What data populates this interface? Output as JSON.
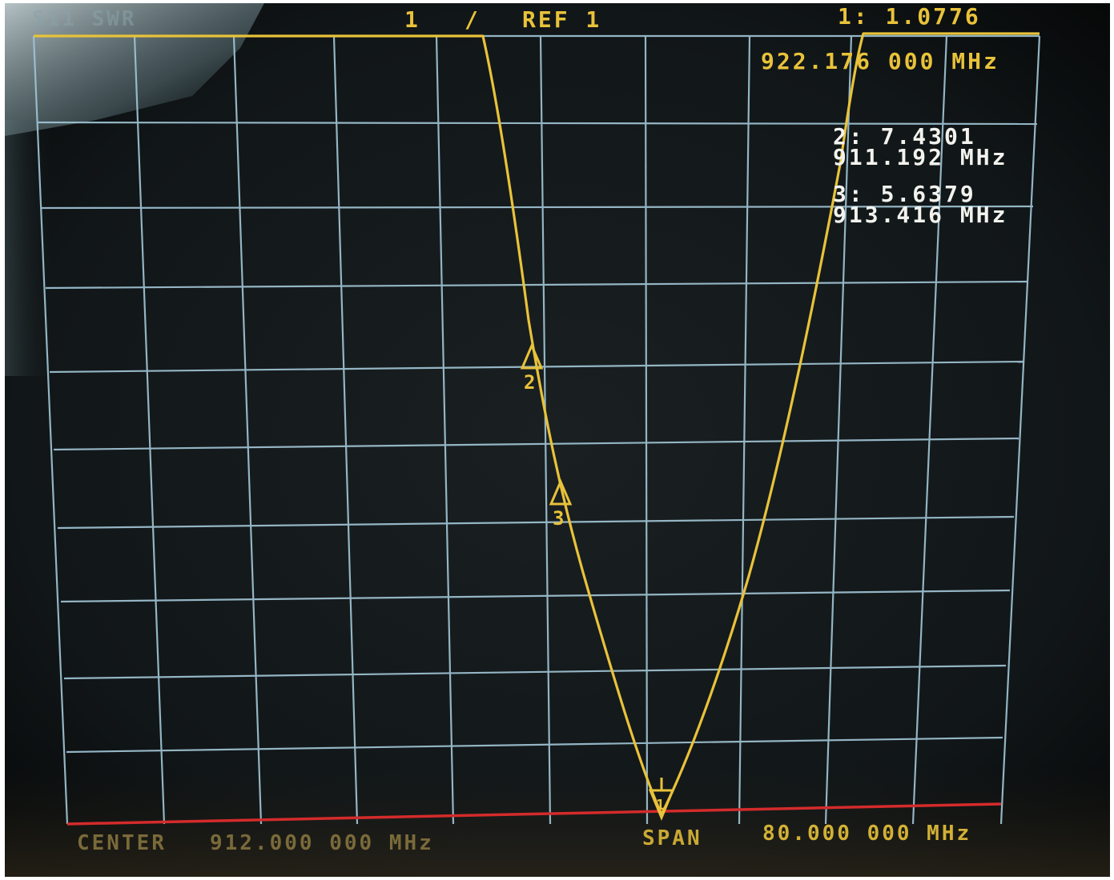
{
  "header": {
    "channel": "1",
    "slash": "/",
    "ref": "REF 1",
    "marker1": "1: 1.0776",
    "marker1_freq": "922.176 000 MHz",
    "status_faded": "S11 SWR"
  },
  "markers": {
    "m2_value": "2: 7.4301",
    "m2_freq": "911.192 MHz",
    "m3_value": "3: 5.6379",
    "m3_freq": "913.416 MHz",
    "m2_label": "2",
    "m3_label": "3",
    "m1_label": "1"
  },
  "footer": {
    "center_label": "CENTER",
    "center_value": "912.000 000 MHz",
    "span_label": "SPAN",
    "span_value": "80.000 000 MHz"
  },
  "colors": {
    "trace": "#e8c23a",
    "grid": "#9fc3d3",
    "annotation": "#f2f2ee",
    "screen": "#0f1416",
    "baseline": "#d42b2b"
  }
}
